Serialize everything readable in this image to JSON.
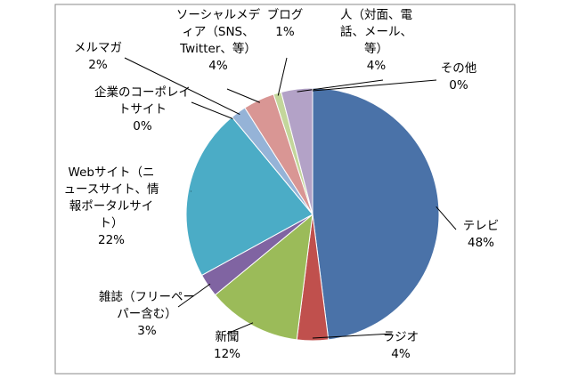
{
  "chart_data": {
    "type": "pie",
    "categories": [
      "テレビ",
      "ラジオ",
      "新聞",
      "雑誌（フリーペーパー含む）",
      "Webサイト（ニュースサイト、情報ポータルサイト）",
      "企業のコーポレイトサイト",
      "メルマガ",
      "ソーシャルメディア（SNS、Twitter、等）",
      "ブログ",
      "人（対面、電話、メール、等）",
      "その他"
    ],
    "values": [
      48,
      4,
      12,
      3,
      22,
      0,
      2,
      4,
      1,
      4,
      0
    ],
    "value_labels": [
      "48%",
      "4%",
      "12%",
      "3%",
      "22%",
      "0%",
      "2%",
      "4%",
      "1%",
      "4%",
      "0%"
    ],
    "colors": [
      "#4a72a8",
      "#c0504d",
      "#9bbb59",
      "#8064a2",
      "#4bacc6",
      "#f79646",
      "#95b3d7",
      "#d99694",
      "#c3d69b",
      "#b3a2c7",
      "#93cddd"
    ]
  }
}
